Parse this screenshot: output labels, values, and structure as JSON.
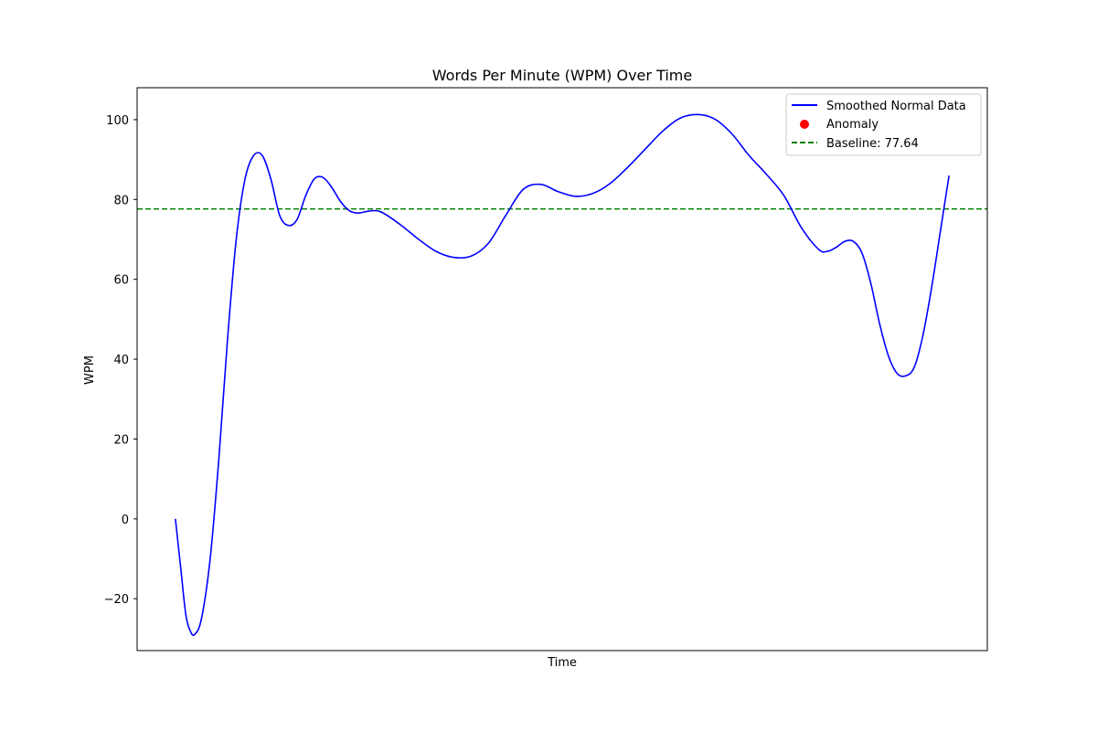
{
  "chart_data": {
    "type": "line",
    "title": "Words Per Minute (WPM) Over Time",
    "xlabel": "Time",
    "ylabel": "WPM",
    "ylim": [
      -33,
      108
    ],
    "y_ticks": [
      -20,
      0,
      20,
      40,
      60,
      80,
      100
    ],
    "y_tick_labels": [
      "−20",
      "0",
      "20",
      "40",
      "60",
      "80",
      "100"
    ],
    "x_ticks_visible": false,
    "grid": false,
    "legend_position": "top-right",
    "series": [
      {
        "name": "Smoothed Normal Data",
        "color": "#0000ff",
        "style": "solid",
        "points": [
          [
            0,
            0
          ],
          [
            0.006,
            -12
          ],
          [
            0.012,
            -24
          ],
          [
            0.017,
            -28
          ],
          [
            0.022,
            -29
          ],
          [
            0.03,
            -25
          ],
          [
            0.04,
            -10
          ],
          [
            0.05,
            15
          ],
          [
            0.06,
            45
          ],
          [
            0.07,
            70
          ],
          [
            0.08,
            85
          ],
          [
            0.09,
            91
          ],
          [
            0.1,
            91
          ],
          [
            0.11,
            85
          ],
          [
            0.12,
            76
          ],
          [
            0.13,
            73.5
          ],
          [
            0.14,
            75
          ],
          [
            0.15,
            81
          ],
          [
            0.16,
            85.2
          ],
          [
            0.17,
            85.5
          ],
          [
            0.18,
            83
          ],
          [
            0.19,
            79.5
          ],
          [
            0.2,
            77.2
          ],
          [
            0.21,
            76.6
          ],
          [
            0.22,
            77
          ],
          [
            0.23,
            77.2
          ],
          [
            0.24,
            76.5
          ],
          [
            0.26,
            73.5
          ],
          [
            0.28,
            70
          ],
          [
            0.3,
            67
          ],
          [
            0.32,
            65.5
          ],
          [
            0.34,
            65.8
          ],
          [
            0.36,
            69
          ],
          [
            0.38,
            76
          ],
          [
            0.4,
            82.5
          ],
          [
            0.42,
            83.8
          ],
          [
            0.44,
            82
          ],
          [
            0.46,
            80.8
          ],
          [
            0.48,
            81.5
          ],
          [
            0.5,
            84
          ],
          [
            0.52,
            88
          ],
          [
            0.54,
            92.5
          ],
          [
            0.56,
            97
          ],
          [
            0.58,
            100.3
          ],
          [
            0.6,
            101.3
          ],
          [
            0.62,
            100.2
          ],
          [
            0.64,
            96.5
          ],
          [
            0.66,
            91
          ],
          [
            0.68,
            86.3
          ],
          [
            0.7,
            81
          ],
          [
            0.72,
            73
          ],
          [
            0.74,
            67.5
          ],
          [
            0.75,
            67
          ],
          [
            0.76,
            68
          ],
          [
            0.77,
            69.5
          ],
          [
            0.78,
            69.5
          ],
          [
            0.79,
            66.5
          ],
          [
            0.8,
            59
          ],
          [
            0.81,
            49
          ],
          [
            0.82,
            41
          ],
          [
            0.83,
            36.5
          ],
          [
            0.84,
            35.8
          ],
          [
            0.85,
            38
          ],
          [
            0.86,
            46
          ],
          [
            0.87,
            58
          ],
          [
            0.88,
            72
          ],
          [
            0.89,
            86
          ]
        ]
      }
    ],
    "anomalies": {
      "name": "Anomaly",
      "color": "#ff0000",
      "points": []
    },
    "baseline": {
      "label": "Baseline: 77.64",
      "value": 77.64,
      "color": "#008000",
      "style": "dashed"
    },
    "legend": [
      "Smoothed Normal Data",
      "Anomaly",
      "Baseline: 77.64"
    ]
  }
}
